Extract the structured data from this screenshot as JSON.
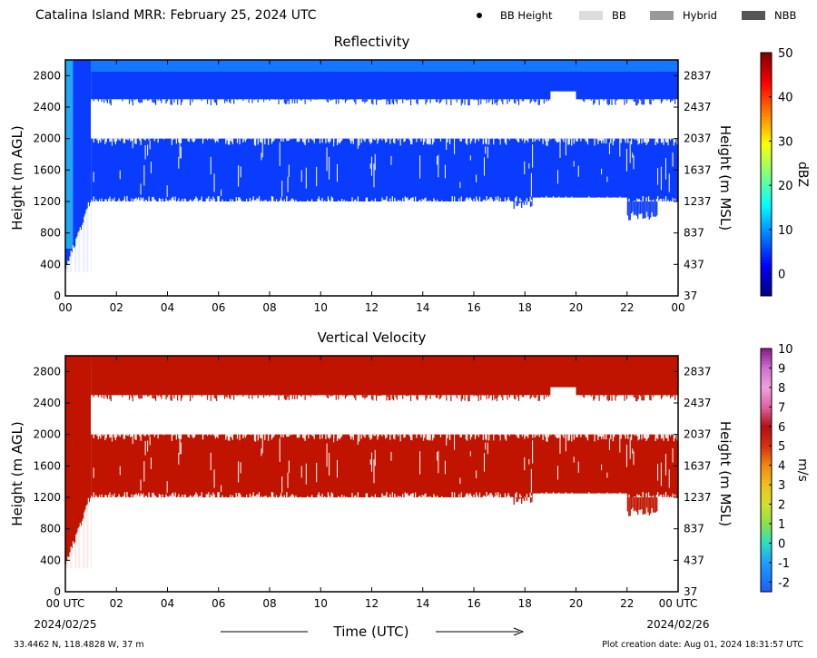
{
  "header": {
    "title": "Catalina Island MRR:  February 25, 2024 UTC",
    "legend": [
      {
        "label": "BB Height",
        "marker": "dot",
        "color": "#000000"
      },
      {
        "label": "BB",
        "marker": "swatch",
        "color": "#dcdcdc"
      },
      {
        "label": "Hybrid",
        "marker": "swatch",
        "color": "#999999"
      },
      {
        "label": "NBB",
        "marker": "swatch",
        "color": "#555555"
      }
    ]
  },
  "chart_data": [
    {
      "type": "heatmap",
      "title": "Reflectivity",
      "xlabel": "",
      "ylabel": "Height (m AGL)",
      "ylabel_right": "Height (m MSL)",
      "xlim": [
        0,
        24
      ],
      "ylim": [
        0,
        3000
      ],
      "x_ticks": [
        "00",
        "02",
        "04",
        "06",
        "08",
        "10",
        "12",
        "14",
        "16",
        "18",
        "20",
        "22",
        "00"
      ],
      "y_ticks": [
        0,
        400,
        800,
        1200,
        1600,
        2000,
        2400,
        2800
      ],
      "y_ticks_right": [
        "37",
        "437",
        "837",
        "1237",
        "1637",
        "2037",
        "2437",
        "2837"
      ],
      "y_ticks_right_values": [
        0,
        400,
        800,
        1200,
        1600,
        2000,
        2400,
        2800
      ],
      "colorbar": {
        "label": "dBZ",
        "range": [
          -5,
          50
        ],
        "ticks": [
          0,
          10,
          20,
          30,
          40,
          50
        ],
        "tick_labels": [
          "0",
          "10",
          "20",
          "30",
          "40",
          "50"
        ],
        "colormap": "jet"
      },
      "field_color": "#0a3cff",
      "top_color": "#1a8aff",
      "edge_color": "#2ad6f0",
      "precip_regions": [
        {
          "t_start": 0.0,
          "t_end": 1.0,
          "h_bottom": 300,
          "h_top": 3000
        },
        {
          "t_start": 1.0,
          "t_end": 24.0,
          "h_bottom": 2500,
          "h_top": 3000
        },
        {
          "t_start": 1.0,
          "t_end": 24.0,
          "h_bottom": 1200,
          "h_top": 2000
        }
      ],
      "gaps": [
        {
          "t_start": 1.0,
          "t_end": 22.2,
          "h_bottom": 2020,
          "h_top": 2460
        },
        {
          "t_start": 22.7,
          "t_end": 24.0,
          "h_bottom": 2020,
          "h_top": 2460
        },
        {
          "t_start": 19.0,
          "t_end": 20.0,
          "h_bottom": 2460,
          "h_top": 2600
        },
        {
          "t_start": 18.3,
          "t_end": 22.0,
          "h_bottom": 1000,
          "h_top": 1250
        }
      ]
    },
    {
      "type": "heatmap",
      "title": "Vertical Velocity",
      "xlabel": "Time (UTC)",
      "ylabel": "Height (m AGL)",
      "ylabel_right": "Height (m MSL)",
      "xlim": [
        0,
        24
      ],
      "ylim": [
        0,
        3000
      ],
      "x_ticks": [
        "00 UTC",
        "02",
        "04",
        "06",
        "08",
        "10",
        "12",
        "14",
        "16",
        "18",
        "20",
        "22",
        "00 UTC"
      ],
      "x_date_start": "2024/02/25",
      "x_date_end": "2024/02/26",
      "y_ticks": [
        0,
        400,
        800,
        1200,
        1600,
        2000,
        2400,
        2800
      ],
      "y_ticks_right": [
        "37",
        "437",
        "837",
        "1237",
        "1637",
        "2037",
        "2437",
        "2837"
      ],
      "y_ticks_right_values": [
        0,
        400,
        800,
        1200,
        1600,
        2000,
        2400,
        2800
      ],
      "colorbar": {
        "label": "m/s",
        "range": [
          -2.5,
          10
        ],
        "ticks": [
          -2,
          -1,
          0,
          1,
          2,
          3,
          4,
          5,
          6,
          7,
          8,
          9,
          10
        ],
        "tick_labels": [
          "-2",
          "-1",
          "0",
          "1",
          "2",
          "3",
          "4",
          "5",
          "6",
          "7",
          "8",
          "9",
          "10"
        ],
        "colormap": "velocity"
      },
      "field_color": "#c01400",
      "top_color": "#c01400",
      "edge_color": "#c01400",
      "precip_regions": [
        {
          "t_start": 0.0,
          "t_end": 1.0,
          "h_bottom": 300,
          "h_top": 3000
        },
        {
          "t_start": 1.0,
          "t_end": 24.0,
          "h_bottom": 2500,
          "h_top": 3000
        },
        {
          "t_start": 1.0,
          "t_end": 24.0,
          "h_bottom": 1200,
          "h_top": 2000
        }
      ],
      "gaps": [
        {
          "t_start": 1.0,
          "t_end": 22.2,
          "h_bottom": 2020,
          "h_top": 2460
        },
        {
          "t_start": 22.7,
          "t_end": 24.0,
          "h_bottom": 2020,
          "h_top": 2460
        },
        {
          "t_start": 19.0,
          "t_end": 20.0,
          "h_bottom": 2460,
          "h_top": 2600
        },
        {
          "t_start": 18.3,
          "t_end": 22.0,
          "h_bottom": 1000,
          "h_top": 1250
        }
      ]
    }
  ],
  "footer": {
    "location": "33.4462 N, 118.4828 W, 37 m",
    "created": "Plot creation date: Aug 01, 2024 18:31:57 UTC"
  }
}
